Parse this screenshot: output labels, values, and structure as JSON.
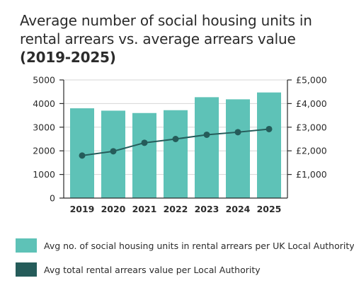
{
  "title_main": "Average number of social housing units in rental arrears vs. average arrears value ",
  "title_years": "(2019-2025)",
  "colors": {
    "bar": "#5ec2b7",
    "line": "#255c5a",
    "axis": "#2b2b2b",
    "grid": "#d6d6d6"
  },
  "chart_data": {
    "type": "bar",
    "title": "Average number of social housing units in rental arrears vs. average arrears value (2019-2025)",
    "categories": [
      "2019",
      "2020",
      "2021",
      "2022",
      "2023",
      "2024",
      "2025"
    ],
    "grid": true,
    "legend_placement": "bottom",
    "y_left": {
      "ylim": [
        0,
        5000
      ],
      "ticks": [
        0,
        1000,
        2000,
        3000,
        4000,
        5000
      ],
      "tick_labels": [
        "0",
        "1000",
        "2000",
        "3000",
        "4000",
        "5000"
      ]
    },
    "y_right": {
      "ylim": [
        0,
        5000
      ],
      "ticks": [
        1000,
        2000,
        3000,
        4000,
        5000
      ],
      "tick_labels": [
        "£1,000",
        "£2,000",
        "£3,000",
        "£4,000",
        "£5,000"
      ]
    },
    "series": [
      {
        "name": "Avg no. of social housing units in rental arrears per UK Local Authority",
        "type": "bar",
        "axis": "left",
        "values": [
          3800,
          3700,
          3600,
          3720,
          4270,
          4180,
          4470
        ]
      },
      {
        "name": "Avg total rental arrears value per Local Authority",
        "type": "line",
        "axis": "right",
        "values": [
          1800,
          1980,
          2340,
          2500,
          2680,
          2790,
          2920
        ]
      }
    ]
  }
}
